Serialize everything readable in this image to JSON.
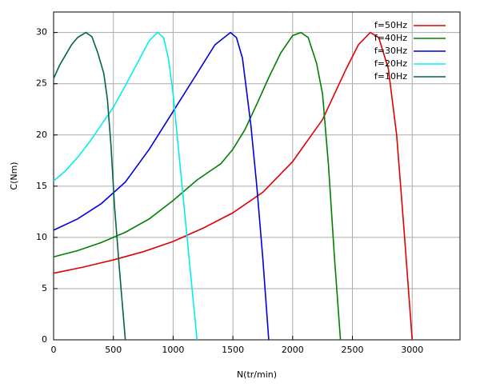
{
  "chart_data": {
    "type": "line",
    "x_label": "N(tr/min)",
    "y_label": "C(Nm)",
    "xlim": [
      0,
      3400
    ],
    "ylim": [
      0,
      32
    ],
    "xticks": [
      0,
      500,
      1000,
      1500,
      2000,
      2500,
      3000
    ],
    "yticks": [
      0,
      5,
      10,
      15,
      20,
      25,
      30
    ],
    "grid": true,
    "legend": "top-right",
    "series": [
      {
        "name": "f=50Hz",
        "color": "#e00000",
        "x": [
          0,
          250,
          500,
          750,
          1000,
          1250,
          1500,
          1750,
          2000,
          2250,
          2450,
          2550,
          2650,
          2720,
          2800,
          2870,
          2930,
          3000
        ],
        "values": [
          6.5,
          7.1,
          7.8,
          8.6,
          9.6,
          10.9,
          12.4,
          14.4,
          17.4,
          21.5,
          26.5,
          28.8,
          30,
          29.5,
          26.5,
          20,
          11,
          0
        ]
      },
      {
        "name": "f=40Hz",
        "color": "#008000",
        "x": [
          0,
          200,
          400,
          600,
          800,
          1000,
          1200,
          1400,
          1500,
          1600,
          1700,
          1800,
          1900,
          2000,
          2070,
          2130,
          2200,
          2250,
          2300,
          2350,
          2400
        ],
        "values": [
          8.1,
          8.7,
          9.5,
          10.5,
          11.8,
          13.6,
          15.6,
          17.2,
          18.6,
          20.5,
          23,
          25.6,
          28,
          29.7,
          30,
          29.5,
          27,
          24,
          17,
          8,
          0
        ]
      },
      {
        "name": "f=30Hz",
        "color": "#0000dd",
        "x": [
          0,
          200,
          400,
          600,
          800,
          1000,
          1200,
          1350,
          1480,
          1530,
          1580,
          1650,
          1700,
          1750,
          1800
        ],
        "values": [
          10.7,
          11.8,
          13.3,
          15.4,
          18.6,
          22.3,
          26,
          28.8,
          30,
          29.5,
          27.5,
          21,
          15,
          8,
          0
        ]
      },
      {
        "name": "f=20Hz",
        "color": "#00eeee",
        "x": [
          0,
          100,
          200,
          300,
          400,
          500,
          600,
          700,
          800,
          870,
          920,
          960,
          1000,
          1050,
          1100,
          1150,
          1200
        ],
        "values": [
          15.5,
          16.5,
          17.8,
          19.3,
          21,
          22.7,
          24.8,
          27,
          29.2,
          30,
          29.5,
          27.5,
          24,
          18,
          12,
          6,
          0
        ]
      },
      {
        "name": "f=10Hz",
        "color": "#006644",
        "x": [
          0,
          50,
          100,
          150,
          200,
          270,
          320,
          370,
          420,
          450,
          480,
          510,
          550,
          600
        ],
        "values": [
          25.5,
          26.8,
          27.8,
          28.8,
          29.5,
          30,
          29.6,
          28,
          26,
          23.5,
          19,
          13,
          7,
          0
        ]
      }
    ]
  }
}
